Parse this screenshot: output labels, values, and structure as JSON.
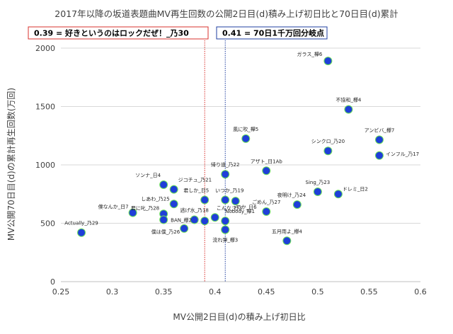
{
  "chart_data": {
    "type": "scatter",
    "title": "2017年以降の坂道表題曲MV再生回数の公開2日目(d)積み上げ初日比と70日目(d)累計",
    "xlabel": "MV公開2日目(d)の積み上げ初日比",
    "ylabel": "MV公開70日目(d)の累計再生回数(万回)",
    "xlim": [
      0.25,
      0.6
    ],
    "ylim": [
      0,
      2000
    ],
    "x_ticks": [
      "0.25",
      "0.3",
      "0.35",
      "0.4",
      "0.45",
      "0.5",
      "0.55",
      "0.6"
    ],
    "y_ticks": [
      "0",
      "500",
      "1000",
      "1500",
      "2000"
    ],
    "grid": "horizontal",
    "point_color": "#1f3fd8",
    "point_edge_color": "#6ee05a",
    "reference_lines": [
      {
        "x": 0.39,
        "color": "#d9302c",
        "label": "0.39 = 好きというのはロックだぜ！_乃30"
      },
      {
        "x": 0.41,
        "color": "#1f3fa0",
        "label": "0.41 = 70日1千万回分岐点"
      }
    ],
    "points": [
      {
        "label": "ガラス_欅6",
        "x": 0.51,
        "y": 1890,
        "lx": -8,
        "ly": -10,
        "anchor": "end"
      },
      {
        "label": "不協和_欅4",
        "x": 0.53,
        "y": 1475,
        "lx": 0,
        "ly": -14,
        "anchor": "middle"
      },
      {
        "label": "アンビバ_欅7",
        "x": 0.56,
        "y": 1215,
        "lx": 0,
        "ly": -14,
        "anchor": "middle"
      },
      {
        "label": "インフル_乃17",
        "x": 0.56,
        "y": 1080,
        "lx": 9,
        "ly": -3,
        "anchor": "start"
      },
      {
        "label": "風に吹_欅5",
        "x": 0.43,
        "y": 1225,
        "lx": 0,
        "ly": -14,
        "anchor": "middle"
      },
      {
        "label": "シンクロ_乃20",
        "x": 0.51,
        "y": 1120,
        "lx": 0,
        "ly": -14,
        "anchor": "middle"
      },
      {
        "label": "アザト_日1Ab",
        "x": 0.45,
        "y": 950,
        "lx": 0,
        "ly": -14,
        "anchor": "middle"
      },
      {
        "label": "帰り道_乃22",
        "x": 0.41,
        "y": 920,
        "lx": 0,
        "ly": -14,
        "anchor": "middle"
      },
      {
        "label": "ソンナ_日4",
        "x": 0.35,
        "y": 830,
        "lx": -22,
        "ly": -14,
        "anchor": "middle"
      },
      {
        "label": "ジコチュ_乃21",
        "x": 0.36,
        "y": 790,
        "lx": 6,
        "ly": -14,
        "anchor": "start"
      },
      {
        "label": "Sing_乃23",
        "x": 0.5,
        "y": 770,
        "lx": 0,
        "ly": -14,
        "anchor": "middle"
      },
      {
        "label": "ドレミ_日2",
        "x": 0.52,
        "y": 750,
        "lx": 6,
        "ly": -8,
        "anchor": "start"
      },
      {
        "label": "夜明け_乃24",
        "x": 0.48,
        "y": 660,
        "lx": -8,
        "ly": -14,
        "anchor": "middle"
      },
      {
        "label": "しあわ_乃25",
        "x": 0.36,
        "y": 665,
        "lx": -6,
        "ly": -8,
        "anchor": "end"
      },
      {
        "label": "君しか_日5",
        "x": 0.39,
        "y": 700,
        "lx": -12,
        "ly": -14,
        "anchor": "middle"
      },
      {
        "label": "いつか_乃19",
        "x": 0.41,
        "y": 700,
        "lx": 6,
        "ly": -14,
        "anchor": "middle"
      },
      {
        "label": "ってか_日6",
        "x": 0.42,
        "y": 690,
        "lx": 12,
        "ly": 8,
        "anchor": "middle"
      },
      {
        "label": "ごめん_乃27",
        "x": 0.45,
        "y": 600,
        "lx": 0,
        "ly": -14,
        "anchor": "middle"
      },
      {
        "label": "君に叱_乃28",
        "x": 0.35,
        "y": 580,
        "lx": -6,
        "ly": -9,
        "anchor": "end"
      },
      {
        "label": "僕なんか_日7",
        "x": 0.32,
        "y": 590,
        "lx": -6,
        "ly": -9,
        "anchor": "end"
      },
      {
        "label": "こんな_日3",
        "x": 0.4,
        "y": 550,
        "lx": 2,
        "ly": -14,
        "anchor": "start"
      },
      {
        "label": "逃げ水_乃18",
        "x": 0.38,
        "y": 530,
        "lx": 0,
        "ly": -14,
        "anchor": "middle"
      },
      {
        "label": "",
        "x": 0.39,
        "y": 520,
        "lx": 0,
        "ly": 0,
        "anchor": "middle"
      },
      {
        "label": "BAN_欅2",
        "x": 0.35,
        "y": 530,
        "lx": 10,
        "ly": 0,
        "anchor": "start"
      },
      {
        "label": "Nobody_欅1",
        "x": 0.41,
        "y": 520,
        "lx": 0,
        "ly": -14,
        "anchor": "start"
      },
      {
        "label": "Actually_乃29",
        "x": 0.27,
        "y": 420,
        "lx": 0,
        "ly": -14,
        "anchor": "middle"
      },
      {
        "label": "僕は僕_乃26",
        "x": 0.37,
        "y": 455,
        "lx": -6,
        "ly": 4,
        "anchor": "end"
      },
      {
        "label": "",
        "x": 0.41,
        "y": 445,
        "lx": 0,
        "ly": 0,
        "anchor": "middle"
      },
      {
        "label": "流れ弾_欅3",
        "x": 0.41,
        "y": 445,
        "lx": 0,
        "ly": 14,
        "anchor": "middle"
      },
      {
        "label": "五月雨よ_欅4",
        "x": 0.47,
        "y": 350,
        "lx": 0,
        "ly": -14,
        "anchor": "middle"
      }
    ]
  }
}
